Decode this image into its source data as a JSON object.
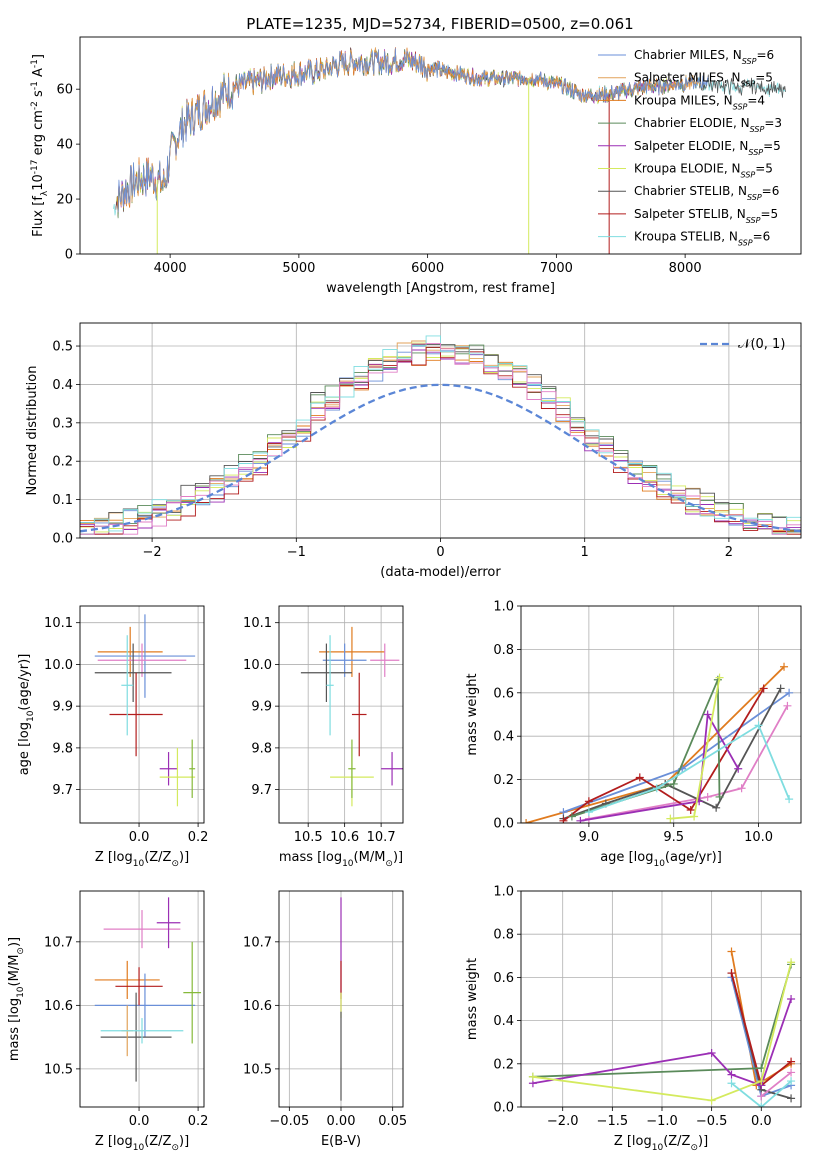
{
  "title": "PLATE=1235, MJD=52734, FIBERID=0500, z=0.061",
  "colors": {
    "chabrier_miles": "#6a8fd8",
    "salpeter_miles": "#e2a25a",
    "kroupa_miles": "#e07b1f",
    "chabrier_elodie": "#5a8a5a",
    "salpeter_elodie": "#9b2fb5",
    "kroupa_elodie": "#d4ea5e",
    "chabrier_stelib": "#555555",
    "salpeter_stelib": "#b21d1d",
    "kroupa_stelib": "#7fdde0",
    "normal": "#5b86d6",
    "extra_pink": "#e07fc6",
    "extra_green": "#86b93a"
  },
  "chart_data": [
    {
      "id": "spectrum",
      "type": "line",
      "xlabel": "wavelength [Angstrom, rest frame]",
      "ylabel": "Flux [f$_\\lambda$10$^{-17}$ erg cm$^{-2}$ s$^{-1}$ A$^{-1}$]",
      "xlim": [
        3300,
        8900
      ],
      "ylim": [
        0,
        79
      ],
      "xticks": [
        "4000",
        "5000",
        "6000",
        "7000",
        "8000"
      ],
      "yticks": [
        "0",
        "20",
        "40",
        "60"
      ],
      "grid": false,
      "legend_position": "top-right",
      "legend": [
        {
          "prefix": "Chabrier MILES, N",
          "sub": "SSP",
          "suffix": "=6",
          "color": "#6a8fd8"
        },
        {
          "prefix": "Salpeter MILES, N",
          "sub": "SSP",
          "suffix": "=5",
          "color": "#e2a25a"
        },
        {
          "prefix": "Kroupa MILES, N",
          "sub": "SSP",
          "suffix": "=4",
          "color": "#e07b1f"
        },
        {
          "prefix": "Chabrier ELODIE, N",
          "sub": "SSP",
          "suffix": "=3",
          "color": "#5a8a5a"
        },
        {
          "prefix": "Salpeter ELODIE, N",
          "sub": "SSP",
          "suffix": "=5",
          "color": "#9b2fb5"
        },
        {
          "prefix": "Kroupa ELODIE, N",
          "sub": "SSP",
          "suffix": "=5",
          "color": "#d4ea5e"
        },
        {
          "prefix": "Chabrier STELIB, N",
          "sub": "SSP",
          "suffix": "=6",
          "color": "#555555"
        },
        {
          "prefix": "Salpeter STELIB, N",
          "sub": "SSP",
          "suffix": "=5",
          "color": "#b21d1d"
        },
        {
          "prefix": "Kroupa STELIB, N",
          "sub": "SSP",
          "suffix": "=6",
          "color": "#7fdde0"
        }
      ],
      "continuum": {
        "x": [
          3560,
          3650,
          3750,
          3850,
          3950,
          4000,
          4050,
          4100,
          4200,
          4300,
          4400,
          4500,
          4600,
          4700,
          4800,
          4900,
          5000,
          5100,
          5200,
          5300,
          5400,
          5500,
          5600,
          5700,
          5800,
          5900,
          6000,
          6100,
          6200,
          6300,
          6400,
          6500,
          6600,
          6700,
          6800,
          6900,
          7000,
          7100,
          7200,
          7300,
          7400,
          7500,
          7600,
          7700,
          7800,
          7900,
          8000,
          8100,
          8200,
          8300,
          8400,
          8500,
          8600,
          8700,
          8800
        ],
        "y": [
          18,
          23,
          27,
          29,
          25,
          35,
          42,
          47,
          51,
          55,
          58,
          61,
          62,
          63,
          65,
          65,
          66,
          66,
          67,
          69,
          70,
          70,
          70,
          70,
          71,
          70,
          68,
          67,
          66,
          65,
          64,
          64,
          64,
          64,
          64,
          63,
          62,
          60,
          58,
          58,
          58,
          59,
          60,
          61,
          61,
          62,
          62,
          62,
          62,
          61,
          61,
          61,
          61,
          60,
          60
        ]
      },
      "spikes": [
        {
          "x": 3900,
          "y": 0,
          "color": "#d4ea5e"
        },
        {
          "x": 6785,
          "y": 0,
          "color": "#d4ea5e"
        },
        {
          "x": 7410,
          "y": 0,
          "color": "#b21d1d"
        }
      ]
    },
    {
      "id": "residuals",
      "type": "histogram",
      "xlabel": "(data-model)/error",
      "ylabel": "Normed distribution",
      "xlim": [
        -2.5,
        2.5
      ],
      "ylim": [
        0,
        0.56
      ],
      "xticks": [
        "−2",
        "−1",
        "0",
        "1",
        "2"
      ],
      "yticks": [
        "0.0",
        "0.1",
        "0.2",
        "0.3",
        "0.4",
        "0.5"
      ],
      "grid": true,
      "legend_position": "top-right",
      "normal_label": "𝒩(0, 1)",
      "bin_width": 0.1,
      "bin_start": -2.5,
      "jitter": [
        0.0,
        0.02,
        -0.01,
        0.03,
        -0.02,
        0.01,
        0.04,
        -0.03,
        0.02,
        -0.01
      ]
    },
    {
      "id": "age_vs_z",
      "type": "errorbar",
      "xlabel": "Z [log$_{10}$(Z/Z$_\\odot$)]",
      "ylabel": "age  [log$_{10}$(age/yr)]",
      "xlim": [
        -0.2,
        0.22
      ],
      "ylim": [
        9.62,
        10.14
      ],
      "xticks": [
        "0.0",
        "0.2"
      ],
      "yticks": [
        "9.7",
        "9.8",
        "9.9",
        "10.0",
        "10.1"
      ],
      "grid": true,
      "points": [
        {
          "x": -0.03,
          "y": 10.03,
          "xerr": 0.11,
          "yerr": 0.06,
          "color": "#e07b1f"
        },
        {
          "x": 0.02,
          "y": 10.02,
          "xerr": 0.17,
          "yerr": 0.1,
          "color": "#6a8fd8"
        },
        {
          "x": 0.01,
          "y": 10.01,
          "xerr": 0.15,
          "yerr": 0.04,
          "color": "#e07fc6"
        },
        {
          "x": -0.02,
          "y": 9.98,
          "xerr": 0.13,
          "yerr": 0.07,
          "color": "#555555"
        },
        {
          "x": -0.01,
          "y": 9.88,
          "xerr": 0.09,
          "yerr": 0.1,
          "color": "#b21d1d"
        },
        {
          "x": -0.04,
          "y": 9.95,
          "xerr": 0.02,
          "yerr": 0.12,
          "color": "#7fdde0"
        },
        {
          "x": 0.1,
          "y": 9.75,
          "xerr": 0.03,
          "yerr": 0.04,
          "color": "#9b2fb5"
        },
        {
          "x": 0.13,
          "y": 9.73,
          "xerr": 0.06,
          "yerr": 0.07,
          "color": "#d4ea5e"
        },
        {
          "x": 0.18,
          "y": 9.75,
          "xerr": 0.01,
          "yerr": 0.07,
          "color": "#86b93a"
        }
      ]
    },
    {
      "id": "age_vs_mass",
      "type": "errorbar",
      "xlabel": "mass [log$_{10}$(M/M$_\\odot$)]",
      "ylabel": "",
      "xlim": [
        10.42,
        10.76
      ],
      "ylim": [
        9.62,
        10.14
      ],
      "xticks": [
        "10.5",
        "10.6",
        "10.7"
      ],
      "yticks": [
        "9.7",
        "9.8",
        "9.9",
        "10.0",
        "10.1"
      ],
      "grid": true,
      "points": [
        {
          "x": 10.62,
          "y": 10.03,
          "xerr": 0.09,
          "yerr": 0.06,
          "color": "#e07b1f"
        },
        {
          "x": 10.6,
          "y": 10.01,
          "xerr": 0.06,
          "yerr": 0.04,
          "color": "#6a8fd8"
        },
        {
          "x": 10.71,
          "y": 10.01,
          "xerr": 0.04,
          "yerr": 0.04,
          "color": "#e07fc6"
        },
        {
          "x": 10.55,
          "y": 9.98,
          "xerr": 0.07,
          "yerr": 0.07,
          "color": "#555555"
        },
        {
          "x": 10.64,
          "y": 9.88,
          "xerr": 0.02,
          "yerr": 0.1,
          "color": "#b21d1d"
        },
        {
          "x": 10.56,
          "y": 9.95,
          "xerr": 0.01,
          "yerr": 0.12,
          "color": "#7fdde0"
        },
        {
          "x": 10.73,
          "y": 9.75,
          "xerr": 0.03,
          "yerr": 0.04,
          "color": "#9b2fb5"
        },
        {
          "x": 10.62,
          "y": 9.73,
          "xerr": 0.06,
          "yerr": 0.07,
          "color": "#d4ea5e"
        },
        {
          "x": 10.62,
          "y": 9.75,
          "xerr": 0.01,
          "yerr": 0.07,
          "color": "#86b93a"
        }
      ]
    },
    {
      "id": "weight_vs_age",
      "type": "line",
      "xlabel": "age  [log$_{10}$(age/yr)]",
      "ylabel": "mass weight",
      "xlim": [
        8.6,
        10.25
      ],
      "ylim": [
        0,
        1
      ],
      "xticks": [
        "9.0",
        "9.5",
        "10.0"
      ],
      "yticks": [
        "0.0",
        "0.2",
        "0.4",
        "0.6",
        "0.8",
        "1.0"
      ],
      "grid": true,
      "series": [
        {
          "color": "#e07b1f",
          "x": [
            8.63,
            9.45,
            10.15
          ],
          "y": [
            0.0,
            0.18,
            0.72
          ]
        },
        {
          "color": "#6a8fd8",
          "x": [
            8.85,
            9.55,
            10.18
          ],
          "y": [
            0.05,
            0.25,
            0.6
          ]
        },
        {
          "color": "#e07fc6",
          "x": [
            9.0,
            9.7,
            9.9,
            10.17
          ],
          "y": [
            0.02,
            0.12,
            0.16,
            0.54
          ]
        },
        {
          "color": "#555555",
          "x": [
            8.85,
            9.1,
            9.45,
            9.75,
            10.13
          ],
          "y": [
            0.02,
            0.09,
            0.18,
            0.07,
            0.62
          ]
        },
        {
          "color": "#b21d1d",
          "x": [
            8.85,
            9.0,
            9.3,
            9.6,
            10.03
          ],
          "y": [
            0.01,
            0.1,
            0.21,
            0.06,
            0.62
          ]
        },
        {
          "color": "#5a8a5a",
          "x": [
            8.9,
            9.5,
            9.76,
            9.77
          ],
          "y": [
            0.03,
            0.18,
            0.66,
            0.12
          ]
        },
        {
          "color": "#9b2fb5",
          "x": [
            8.95,
            9.65,
            9.7,
            9.88
          ],
          "y": [
            0.01,
            0.1,
            0.5,
            0.25
          ]
        },
        {
          "color": "#d4ea5e",
          "x": [
            9.48,
            9.62,
            9.77
          ],
          "y": [
            0.02,
            0.03,
            0.67
          ]
        },
        {
          "color": "#7fdde0",
          "x": [
            9.0,
            9.4,
            10.0,
            10.18
          ],
          "y": [
            0.05,
            0.16,
            0.45,
            0.11
          ]
        }
      ]
    },
    {
      "id": "mass_vs_z",
      "type": "errorbar",
      "xlabel": "Z [log$_{10}$(Z/Z$_\\odot$)]",
      "ylabel": "mass [log$_{10}$(M/M$_\\odot$)]",
      "xlim": [
        -0.2,
        0.22
      ],
      "ylim": [
        10.44,
        10.78
      ],
      "xticks": [
        "0.0",
        "0.2"
      ],
      "yticks": [
        "10.5",
        "10.6",
        "10.7"
      ],
      "grid": true,
      "points": [
        {
          "x": -0.04,
          "y": 10.64,
          "xerr": 0.11,
          "yerr": 0.03,
          "color": "#e07b1f"
        },
        {
          "x": 0.02,
          "y": 10.6,
          "xerr": 0.17,
          "yerr": 0.05,
          "color": "#6a8fd8"
        },
        {
          "x": 0.01,
          "y": 10.72,
          "xerr": 0.13,
          "yerr": 0.03,
          "color": "#e07fc6"
        },
        {
          "x": -0.01,
          "y": 10.55,
          "xerr": 0.12,
          "yerr": 0.07,
          "color": "#555555"
        },
        {
          "x": 0.0,
          "y": 10.63,
          "xerr": 0.08,
          "yerr": 0.03,
          "color": "#b21d1d"
        },
        {
          "x": -0.04,
          "y": 10.56,
          "xerr": 0.02,
          "yerr": 0.04,
          "color": "#e2a25a"
        },
        {
          "x": 0.01,
          "y": 10.56,
          "xerr": 0.14,
          "yerr": 0.02,
          "color": "#7fdde0"
        },
        {
          "x": 0.1,
          "y": 10.73,
          "xerr": 0.04,
          "yerr": 0.04,
          "color": "#9b2fb5"
        },
        {
          "x": 0.18,
          "y": 10.62,
          "xerr": 0.03,
          "yerr": 0.08,
          "color": "#86b93a"
        }
      ]
    },
    {
      "id": "ebv",
      "type": "errorbar",
      "xlabel": "E(B-V)",
      "ylabel": "",
      "xlim": [
        -0.06,
        0.06
      ],
      "ylim": [
        10.44,
        10.78
      ],
      "xticks": [
        "−0.05",
        "0.00",
        "0.05"
      ],
      "yticks": [
        "10.5",
        "10.6",
        "10.7"
      ],
      "grid": true,
      "points": [
        {
          "x": 0.0,
          "y": 10.68,
          "xerr": 0.0,
          "yerr": 0.09,
          "color": "#9b2fb5"
        },
        {
          "x": 0.0,
          "y": 10.64,
          "xerr": 0.0,
          "yerr": 0.03,
          "color": "#b21d1d"
        },
        {
          "x": 0.0,
          "y": 10.6,
          "xerr": 0.0,
          "yerr": 0.02,
          "color": "#d4ea5e"
        },
        {
          "x": 0.0,
          "y": 10.52,
          "xerr": 0.0,
          "yerr": 0.07,
          "color": "#555555"
        }
      ]
    },
    {
      "id": "weight_vs_z",
      "type": "line",
      "xlabel": "Z [log$_{10}$(Z/Z$_\\odot$)]",
      "ylabel": "mass weight",
      "xlim": [
        -2.42,
        0.4
      ],
      "ylim": [
        0,
        1
      ],
      "xticks": [
        "−2.0",
        "−1.5",
        "−1.0",
        "−0.5",
        "0.0"
      ],
      "yticks": [
        "0.0",
        "0.2",
        "0.4",
        "0.6",
        "0.8",
        "1.0"
      ],
      "grid": true,
      "series": [
        {
          "color": "#e07b1f",
          "x": [
            -0.3,
            -0.05,
            0.3
          ],
          "y": [
            0.72,
            0.1,
            0.2
          ]
        },
        {
          "color": "#6a8fd8",
          "x": [
            -0.3,
            0.0,
            0.3
          ],
          "y": [
            0.6,
            0.05,
            0.1
          ]
        },
        {
          "color": "#555555",
          "x": [
            -0.3,
            0.0,
            0.3
          ],
          "y": [
            0.62,
            0.08,
            0.04
          ]
        },
        {
          "color": "#b21d1d",
          "x": [
            -0.3,
            0.0,
            0.3
          ],
          "y": [
            0.62,
            0.1,
            0.21
          ]
        },
        {
          "color": "#5a8a5a",
          "x": [
            -2.3,
            0.0,
            0.3
          ],
          "y": [
            0.14,
            0.18,
            0.66
          ]
        },
        {
          "color": "#9b2fb5",
          "x": [
            -2.3,
            -0.5,
            -0.3,
            0.0,
            0.3
          ],
          "y": [
            0.11,
            0.25,
            0.15,
            0.1,
            0.5
          ]
        },
        {
          "color": "#d4ea5e",
          "x": [
            -2.3,
            -0.5,
            0.0,
            0.3
          ],
          "y": [
            0.14,
            0.03,
            0.12,
            0.67
          ]
        },
        {
          "color": "#7fdde0",
          "x": [
            -0.3,
            0.0,
            0.3
          ],
          "y": [
            0.11,
            0.0,
            0.12
          ]
        },
        {
          "color": "#e07fc6",
          "x": [
            0.0,
            0.3
          ],
          "y": [
            0.05,
            0.16
          ]
        }
      ]
    }
  ]
}
